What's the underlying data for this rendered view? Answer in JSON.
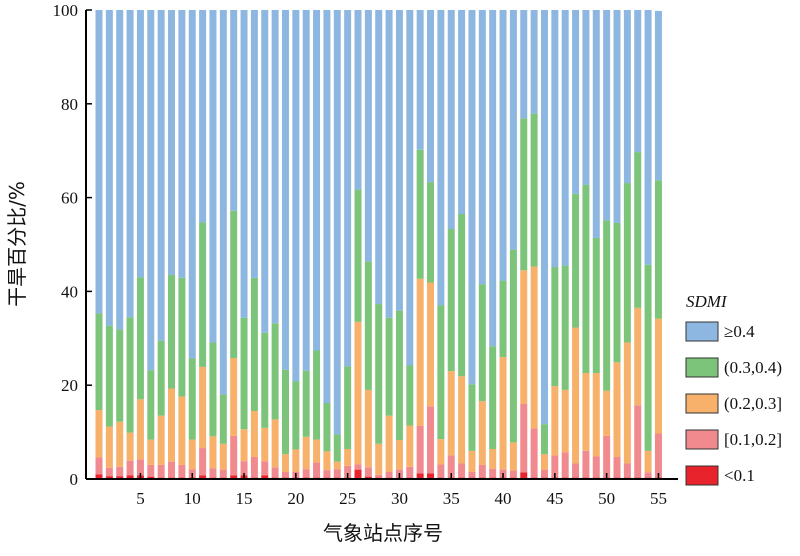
{
  "chart_data": {
    "type": "bar",
    "stacked": true,
    "xlabel": "气象站点序号",
    "ylabel": "干旱百分比/%",
    "ylim": [
      0,
      100
    ],
    "yticks": [
      0,
      20,
      40,
      60,
      80,
      100
    ],
    "xticks": [
      5,
      10,
      15,
      20,
      25,
      30,
      35,
      40,
      45,
      50,
      55
    ],
    "x": [
      1,
      2,
      3,
      4,
      5,
      6,
      7,
      8,
      9,
      10,
      11,
      12,
      13,
      14,
      15,
      16,
      17,
      18,
      19,
      20,
      21,
      22,
      23,
      24,
      25,
      26,
      27,
      28,
      29,
      30,
      31,
      32,
      33,
      34,
      35,
      36,
      37,
      38,
      39,
      40,
      41,
      42,
      43,
      44,
      45,
      46,
      47,
      48,
      49,
      50,
      51,
      52,
      53,
      54,
      55
    ],
    "legend_title": "SDMI",
    "legend_position": "right",
    "series": [
      {
        "name": "<0.1",
        "color": "#e8232b",
        "values": [
          1.0,
          0.6,
          0.6,
          0.8,
          0.8,
          0.5,
          0.3,
          0.3,
          0.3,
          0.3,
          0.8,
          0.3,
          0.3,
          0.8,
          0.8,
          0.3,
          0.8,
          0.3,
          0.3,
          0.3,
          0.3,
          0.3,
          0.3,
          0.3,
          0.3,
          2.0,
          0.5,
          0.3,
          0.3,
          0.3,
          0.3,
          1.2,
          1.2,
          0.3,
          0.3,
          0.3,
          0.3,
          0.3,
          0.3,
          0.3,
          0.3,
          1.4,
          0.3,
          0.3,
          0.3,
          0.3,
          0.3,
          0.3,
          0.3,
          0.3,
          0.3,
          0.3,
          0.3,
          0.3,
          0.3
        ]
      },
      {
        "name": "[0.1,0.2]",
        "color": "#f08a8f",
        "values": [
          3.6,
          1.8,
          2.0,
          3.1,
          3.4,
          2.5,
          2.7,
          3.4,
          2.7,
          1.8,
          5.8,
          2.0,
          1.7,
          8.4,
          3.0,
          4.4,
          3.0,
          2.2,
          1.2,
          1.2,
          1.8,
          3.2,
          1.6,
          1.8,
          2.5,
          1.1,
          2.0,
          0.6,
          1.2,
          1.7,
          2.3,
          10.1,
          14.3,
          2.8,
          4.7,
          3.0,
          1.2,
          2.7,
          1.9,
          1.7,
          1.5,
          14.6,
          10.5,
          1.7,
          4.7,
          5.4,
          3.0,
          5.7,
          4.5,
          8.9,
          4.4,
          3.0,
          15.4,
          1.1,
          9.4
        ]
      },
      {
        "name": "(0.2,0.3]",
        "color": "#f7b16b",
        "values": [
          10.1,
          8.8,
          9.6,
          6.0,
          12.8,
          5.4,
          10.5,
          15.6,
          14.6,
          6.3,
          17.3,
          6.8,
          5.5,
          16.6,
          6.8,
          9.8,
          7.1,
          10.2,
          3.8,
          4.8,
          6.9,
          4.9,
          4.0,
          1.6,
          3.6,
          30.4,
          16.5,
          6.6,
          12.0,
          6.3,
          8.8,
          31.4,
          26.4,
          5.4,
          18.0,
          18.6,
          4.5,
          13.6,
          4.2,
          24.0,
          6.0,
          28.5,
          34.5,
          3.3,
          14.8,
          13.3,
          29.0,
          16.6,
          17.8,
          9.6,
          20.2,
          25.8,
          20.8,
          4.6,
          24.5
        ]
      },
      {
        "name": "(0.3,0.4)",
        "color": "#7cc47a",
        "values": [
          20.6,
          21.5,
          19.7,
          24.6,
          26.0,
          14.8,
          16.0,
          24.2,
          25.3,
          17.3,
          30.8,
          20.0,
          10.5,
          31.4,
          23.8,
          28.4,
          20.3,
          20.5,
          18.0,
          14.5,
          14.1,
          19.0,
          10.3,
          5.8,
          17.6,
          28.2,
          27.4,
          29.8,
          20.9,
          27.6,
          12.8,
          27.5,
          21.4,
          28.5,
          30.3,
          34.6,
          14.2,
          24.9,
          21.9,
          16.3,
          41.1,
          32.4,
          32.6,
          6.4,
          25.4,
          26.5,
          28.5,
          40.1,
          28.8,
          36.3,
          29.7,
          34.0,
          33.2,
          39.7,
          29.5
        ]
      },
      {
        "name": "≥0.4",
        "color": "#8db7e0",
        "values": [
          64.7,
          67.3,
          68.1,
          65.5,
          57.0,
          76.8,
          70.5,
          56.5,
          57.1,
          74.3,
          45.3,
          70.9,
          82.0,
          42.8,
          65.6,
          57.1,
          68.8,
          66.8,
          76.7,
          79.2,
          76.9,
          72.6,
          83.8,
          90.5,
          76.0,
          38.3,
          53.6,
          62.7,
          65.6,
          64.1,
          75.8,
          29.8,
          36.7,
          63.0,
          46.7,
          43.5,
          79.8,
          58.5,
          71.7,
          57.7,
          51.1,
          23.1,
          22.1,
          88.3,
          54.8,
          54.5,
          39.2,
          37.3,
          48.6,
          44.9,
          45.4,
          36.9,
          30.3,
          54.3,
          36.1
        ]
      }
    ]
  }
}
